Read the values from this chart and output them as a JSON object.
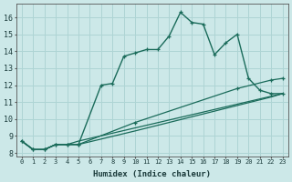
{
  "xlabel": "Humidex (Indice chaleur)",
  "bg_color": "#cce8e8",
  "grid_color": "#aed4d4",
  "line_color": "#1a6b5a",
  "xlim": [
    -0.5,
    23.5
  ],
  "ylim": [
    7.8,
    16.8
  ],
  "xticks": [
    0,
    1,
    2,
    3,
    4,
    5,
    6,
    7,
    8,
    9,
    10,
    11,
    12,
    13,
    14,
    15,
    16,
    17,
    18,
    19,
    20,
    21,
    22,
    23
  ],
  "yticks": [
    8,
    9,
    10,
    11,
    12,
    13,
    14,
    15,
    16
  ],
  "series": [
    {
      "x": [
        0,
        1,
        2,
        3,
        4,
        5,
        7,
        8,
        9,
        10,
        11,
        12,
        13,
        14,
        15,
        16,
        17,
        18,
        19,
        20,
        21,
        22,
        23
      ],
      "y": [
        8.7,
        8.2,
        8.2,
        8.5,
        8.5,
        8.5,
        12.0,
        12.1,
        13.7,
        13.9,
        14.1,
        14.1,
        14.9,
        16.3,
        15.7,
        15.6,
        13.8,
        14.5,
        15.0,
        12.4,
        11.7,
        11.5,
        11.5
      ],
      "marker": "+",
      "linewidth": 1.0,
      "markersize": 3.5
    },
    {
      "x": [
        0,
        1,
        2,
        3,
        4,
        5,
        23
      ],
      "y": [
        8.7,
        8.2,
        8.2,
        8.5,
        8.5,
        8.7,
        11.5
      ],
      "marker": null,
      "linewidth": 0.9
    },
    {
      "x": [
        0,
        1,
        2,
        3,
        4,
        5,
        10,
        19,
        22,
        23
      ],
      "y": [
        8.7,
        8.2,
        8.2,
        8.5,
        8.5,
        8.5,
        9.8,
        11.8,
        12.3,
        12.4
      ],
      "marker": "+",
      "linewidth": 0.9,
      "markersize": 3.5
    },
    {
      "x": [
        0,
        1,
        2,
        3,
        4,
        5,
        10,
        19,
        22,
        23
      ],
      "y": [
        8.7,
        8.2,
        8.2,
        8.5,
        8.5,
        8.5,
        9.3,
        10.8,
        11.3,
        11.5
      ],
      "marker": null,
      "linewidth": 0.9
    }
  ]
}
